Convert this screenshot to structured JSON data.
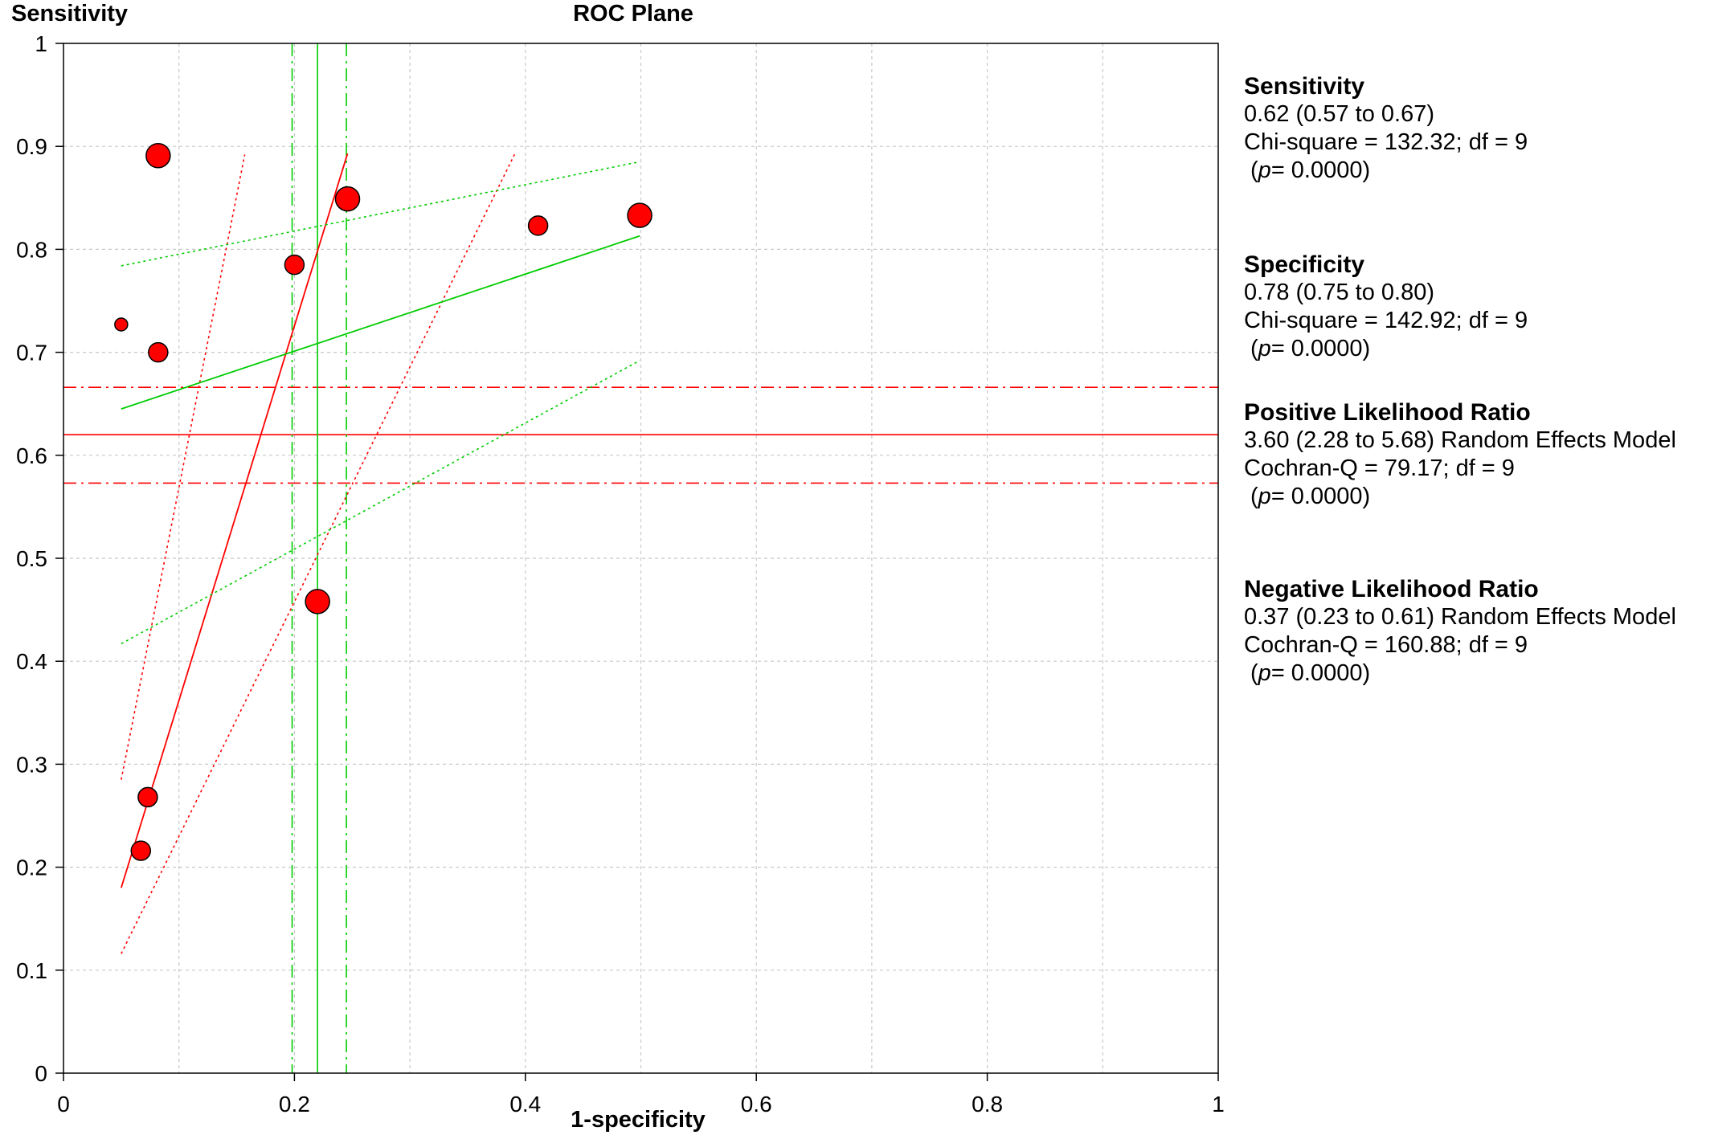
{
  "chart_data": {
    "type": "scatter",
    "title": "ROC Plane",
    "ylabel": "Sensitivity",
    "xlabel": "1-specificity",
    "xlim": [
      0,
      1
    ],
    "ylim": [
      0,
      1
    ],
    "x_ticks": [
      "0",
      "0.2",
      "0.4",
      "0.6",
      "0.8",
      "1"
    ],
    "y_ticks": [
      "0",
      "0.1",
      "0.2",
      "0.3",
      "0.4",
      "0.5",
      "0.6",
      "0.7",
      "0.8",
      "0.9",
      "1"
    ],
    "grid": true,
    "points": [
      {
        "x": 0.05,
        "y": 0.727,
        "size": "small"
      },
      {
        "x": 0.082,
        "y": 0.891,
        "size": "large"
      },
      {
        "x": 0.082,
        "y": 0.7,
        "size": "medium"
      },
      {
        "x": 0.073,
        "y": 0.268,
        "size": "medium"
      },
      {
        "x": 0.067,
        "y": 0.216,
        "size": "medium"
      },
      {
        "x": 0.2,
        "y": 0.785,
        "size": "medium"
      },
      {
        "x": 0.22,
        "y": 0.458,
        "size": "large"
      },
      {
        "x": 0.246,
        "y": 0.849,
        "size": "large"
      },
      {
        "x": 0.411,
        "y": 0.823,
        "size": "medium"
      },
      {
        "x": 0.499,
        "y": 0.833,
        "size": "large"
      }
    ],
    "reference_lines": {
      "sensitivity": {
        "estimate": 0.62,
        "lower": 0.573,
        "upper": 0.666,
        "color": "#ff0000"
      },
      "specificity_fpr": {
        "estimate": 0.22,
        "lower": 0.198,
        "upper": 0.245,
        "color": "#00cc00"
      },
      "plr_line": {
        "x": [
          0.05,
          0.246
        ],
        "y": [
          0.18,
          0.893
        ],
        "color": "#ff0000"
      },
      "plr_ci_upper": {
        "x": [
          0.05,
          0.157
        ],
        "y": [
          0.285,
          0.892
        ],
        "color": "#ff0000"
      },
      "plr_ci_lower": {
        "x": [
          0.05,
          0.391
        ],
        "y": [
          0.116,
          0.893
        ],
        "color": "#ff0000"
      },
      "nlr_line": {
        "x": [
          0.05,
          0.499
        ],
        "y": [
          0.645,
          0.813
        ],
        "color": "#00cc00"
      },
      "nlr_ci_upper": {
        "x": [
          0.05,
          0.499
        ],
        "y": [
          0.784,
          0.885
        ],
        "color": "#00cc00"
      },
      "nlr_ci_lower": {
        "x": [
          0.05,
          0.499
        ],
        "y": [
          0.417,
          0.692
        ],
        "color": "#00cc00"
      }
    },
    "point_color": "#ff0000"
  },
  "stats": {
    "sensitivity": {
      "title": "Sensitivity",
      "value": "0.62 (0.57 to 0.67)",
      "test": "Chi-square = 132.32; df =  9",
      "p_label": "p",
      "p_value": "= 0.0000)"
    },
    "specificity": {
      "title": "Specificity",
      "value": "0.78 (0.75 to 0.80)",
      "test": "Chi-square = 142.92; df =  9",
      "p_label": "p",
      "p_value": "= 0.0000)"
    },
    "plr": {
      "title": "Positive Likelihood Ratio",
      "value": "3.60 (2.28 to 5.68) Random Effects Model",
      "test": "Cochran-Q = 79.17; df =  9",
      "p_label": "p",
      "p_value": "= 0.0000)"
    },
    "nlr": {
      "title": "Negative Likelihood Ratio",
      "value": "0.37 (0.23 to 0.61) Random Effects Model",
      "test": "Cochran-Q = 160.88; df =  9",
      "p_label": "p",
      "p_value": "= 0.0000)"
    }
  }
}
